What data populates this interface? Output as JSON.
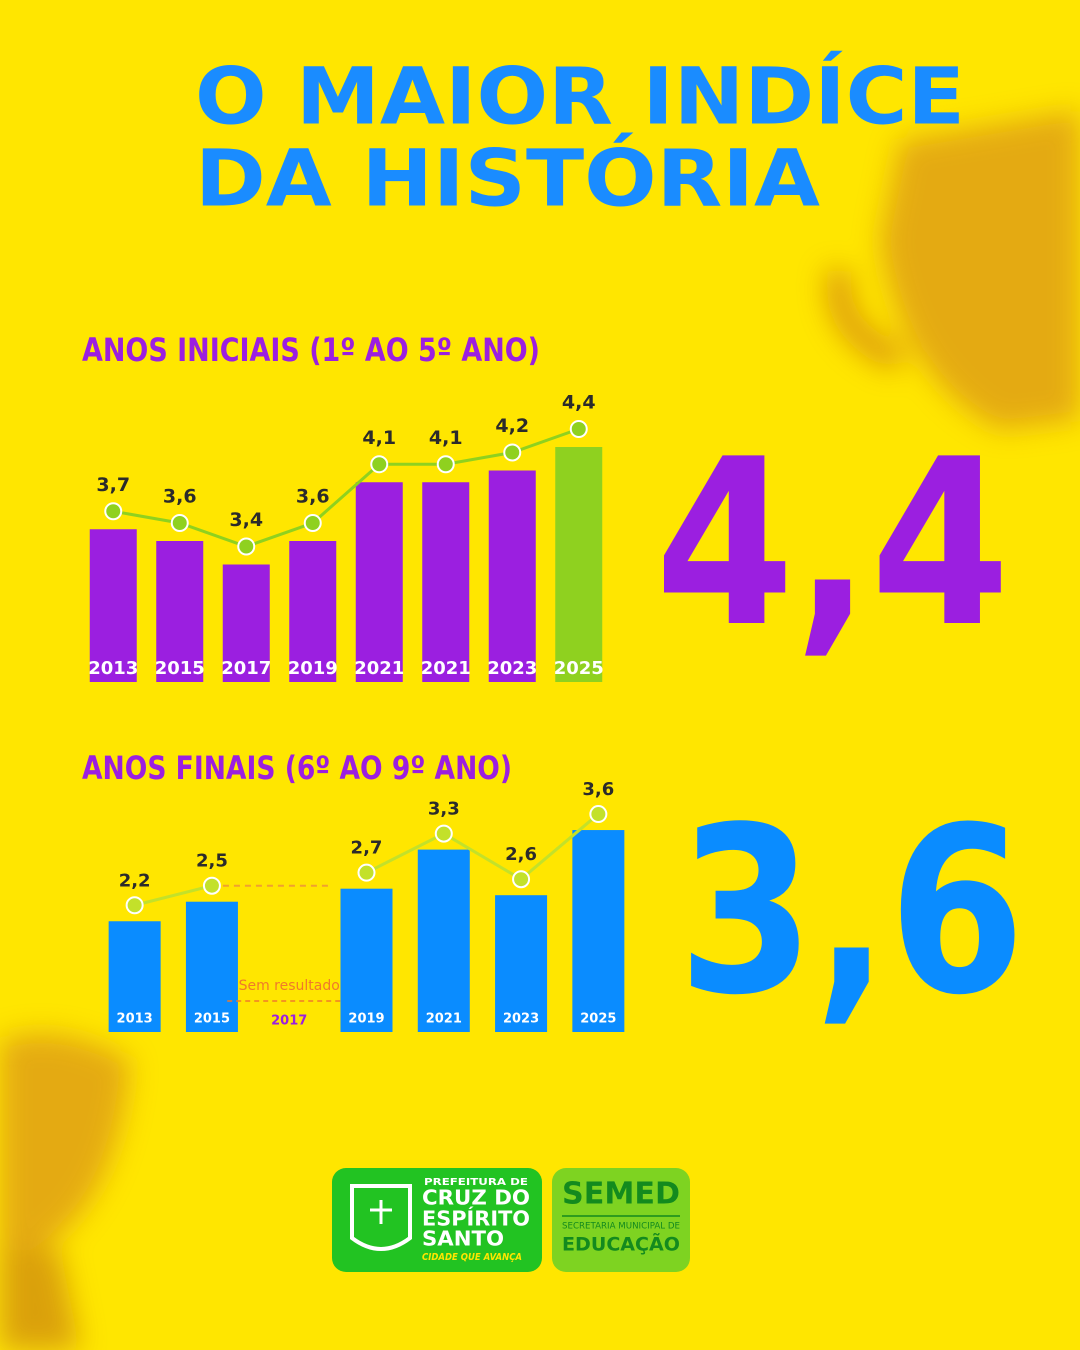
{
  "title_lines": [
    "O MAIOR INDÍCE",
    "DA HISTÓRIA"
  ],
  "chart_data": [
    {
      "type": "bar",
      "title": "ANOS INICIAIS (1º AO 5º ANO)",
      "categories": [
        "2013",
        "2015",
        "2017",
        "2019",
        "2021",
        "2021",
        "2023",
        "2025"
      ],
      "values": [
        3.7,
        3.6,
        3.4,
        3.6,
        4.1,
        4.1,
        4.2,
        4.4
      ],
      "value_labels": [
        "3,7",
        "3,6",
        "3,4",
        "3,6",
        "4,1",
        "4,1",
        "4,2",
        "4,4"
      ],
      "colors": [
        "#9b1fe0",
        "#9b1fe0",
        "#9b1fe0",
        "#9b1fe0",
        "#9b1fe0",
        "#9b1fe0",
        "#9b1fe0",
        "#8fd11f"
      ],
      "line_color": "#8fd11f",
      "ylim": [
        2.4,
        4.6
      ]
    },
    {
      "type": "bar",
      "title": "ANOS FINAIS (6º AO 9º ANO)",
      "categories": [
        "2013",
        "2015",
        "2017",
        "2019",
        "2021",
        "2023",
        "2025"
      ],
      "values": [
        2.2,
        2.5,
        null,
        2.7,
        3.3,
        2.6,
        3.6
      ],
      "value_labels": [
        "2,2",
        "2,5",
        null,
        "2,7",
        "3,3",
        "2,6",
        "3,6"
      ],
      "color": "#0a8cff",
      "line_color": "#c3e12a",
      "annotation": "Sem resultado",
      "ylim": [
        0.5,
        4
      ]
    }
  ],
  "highlights": [
    {
      "value": 4.4,
      "label": "4,4",
      "color": "#9b1fe0"
    },
    {
      "value": 3.6,
      "label": "3,6",
      "color": "#0a8cff"
    }
  ],
  "footer": {
    "city": {
      "prefix": "PREFEITURA DE",
      "name_lines": [
        "CRUZ DO",
        "ESPÍRITO",
        "SANTO"
      ],
      "slogan": "CIDADE QUE AVANÇA"
    },
    "semed": {
      "name": "SEMED",
      "subtitle": "SECRETARIA MUNICIPAL DE",
      "area": "EDUCAÇÃO"
    }
  }
}
